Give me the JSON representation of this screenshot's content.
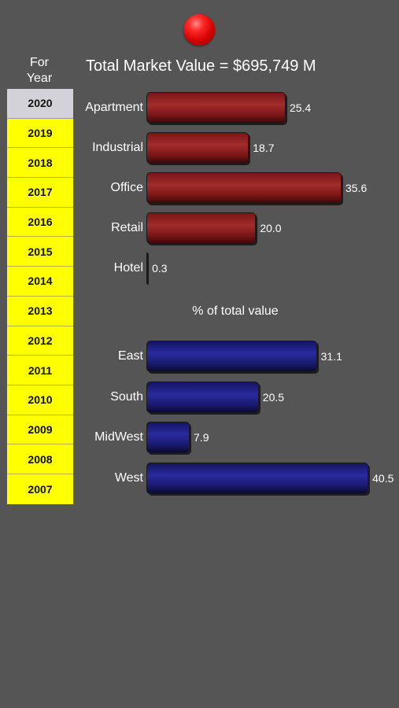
{
  "header": {
    "for_year_line1": "For",
    "for_year_line2": "Year",
    "total_title": "Total Market Value = $695,749 M"
  },
  "years": {
    "selected": "2020",
    "items": [
      "2020",
      "2019",
      "2018",
      "2017",
      "2016",
      "2015",
      "2014",
      "2013",
      "2012",
      "2011",
      "2010",
      "2009",
      "2008",
      "2007"
    ]
  },
  "colors": {
    "background": "#555555",
    "year_highlight": "#ffff00",
    "year_selected": "#d2d2d8",
    "property_bar": "#8b1c1c",
    "region_bar": "#1e1e80"
  },
  "chart_data": [
    {
      "type": "bar",
      "orientation": "horizontal",
      "categories": [
        "Apartment",
        "Industrial",
        "Office",
        "Retail",
        "Hotel"
      ],
      "values": [
        25.4,
        18.7,
        35.6,
        20.0,
        0.3
      ],
      "value_labels": [
        "25.4",
        "18.7",
        "35.6",
        "20.0",
        "0.3"
      ],
      "title": "",
      "color": "#8b1c1c",
      "xlim": [
        0,
        42
      ]
    },
    {
      "type": "bar",
      "orientation": "horizontal",
      "categories": [
        "East",
        "South",
        "MidWest",
        "West"
      ],
      "values": [
        31.1,
        20.5,
        7.9,
        40.5
      ],
      "value_labels": [
        "31.1",
        "20.5",
        "7.9",
        "40.5"
      ],
      "title": "% of total value",
      "color": "#1e1e80",
      "xlim": [
        0,
        42
      ]
    }
  ]
}
